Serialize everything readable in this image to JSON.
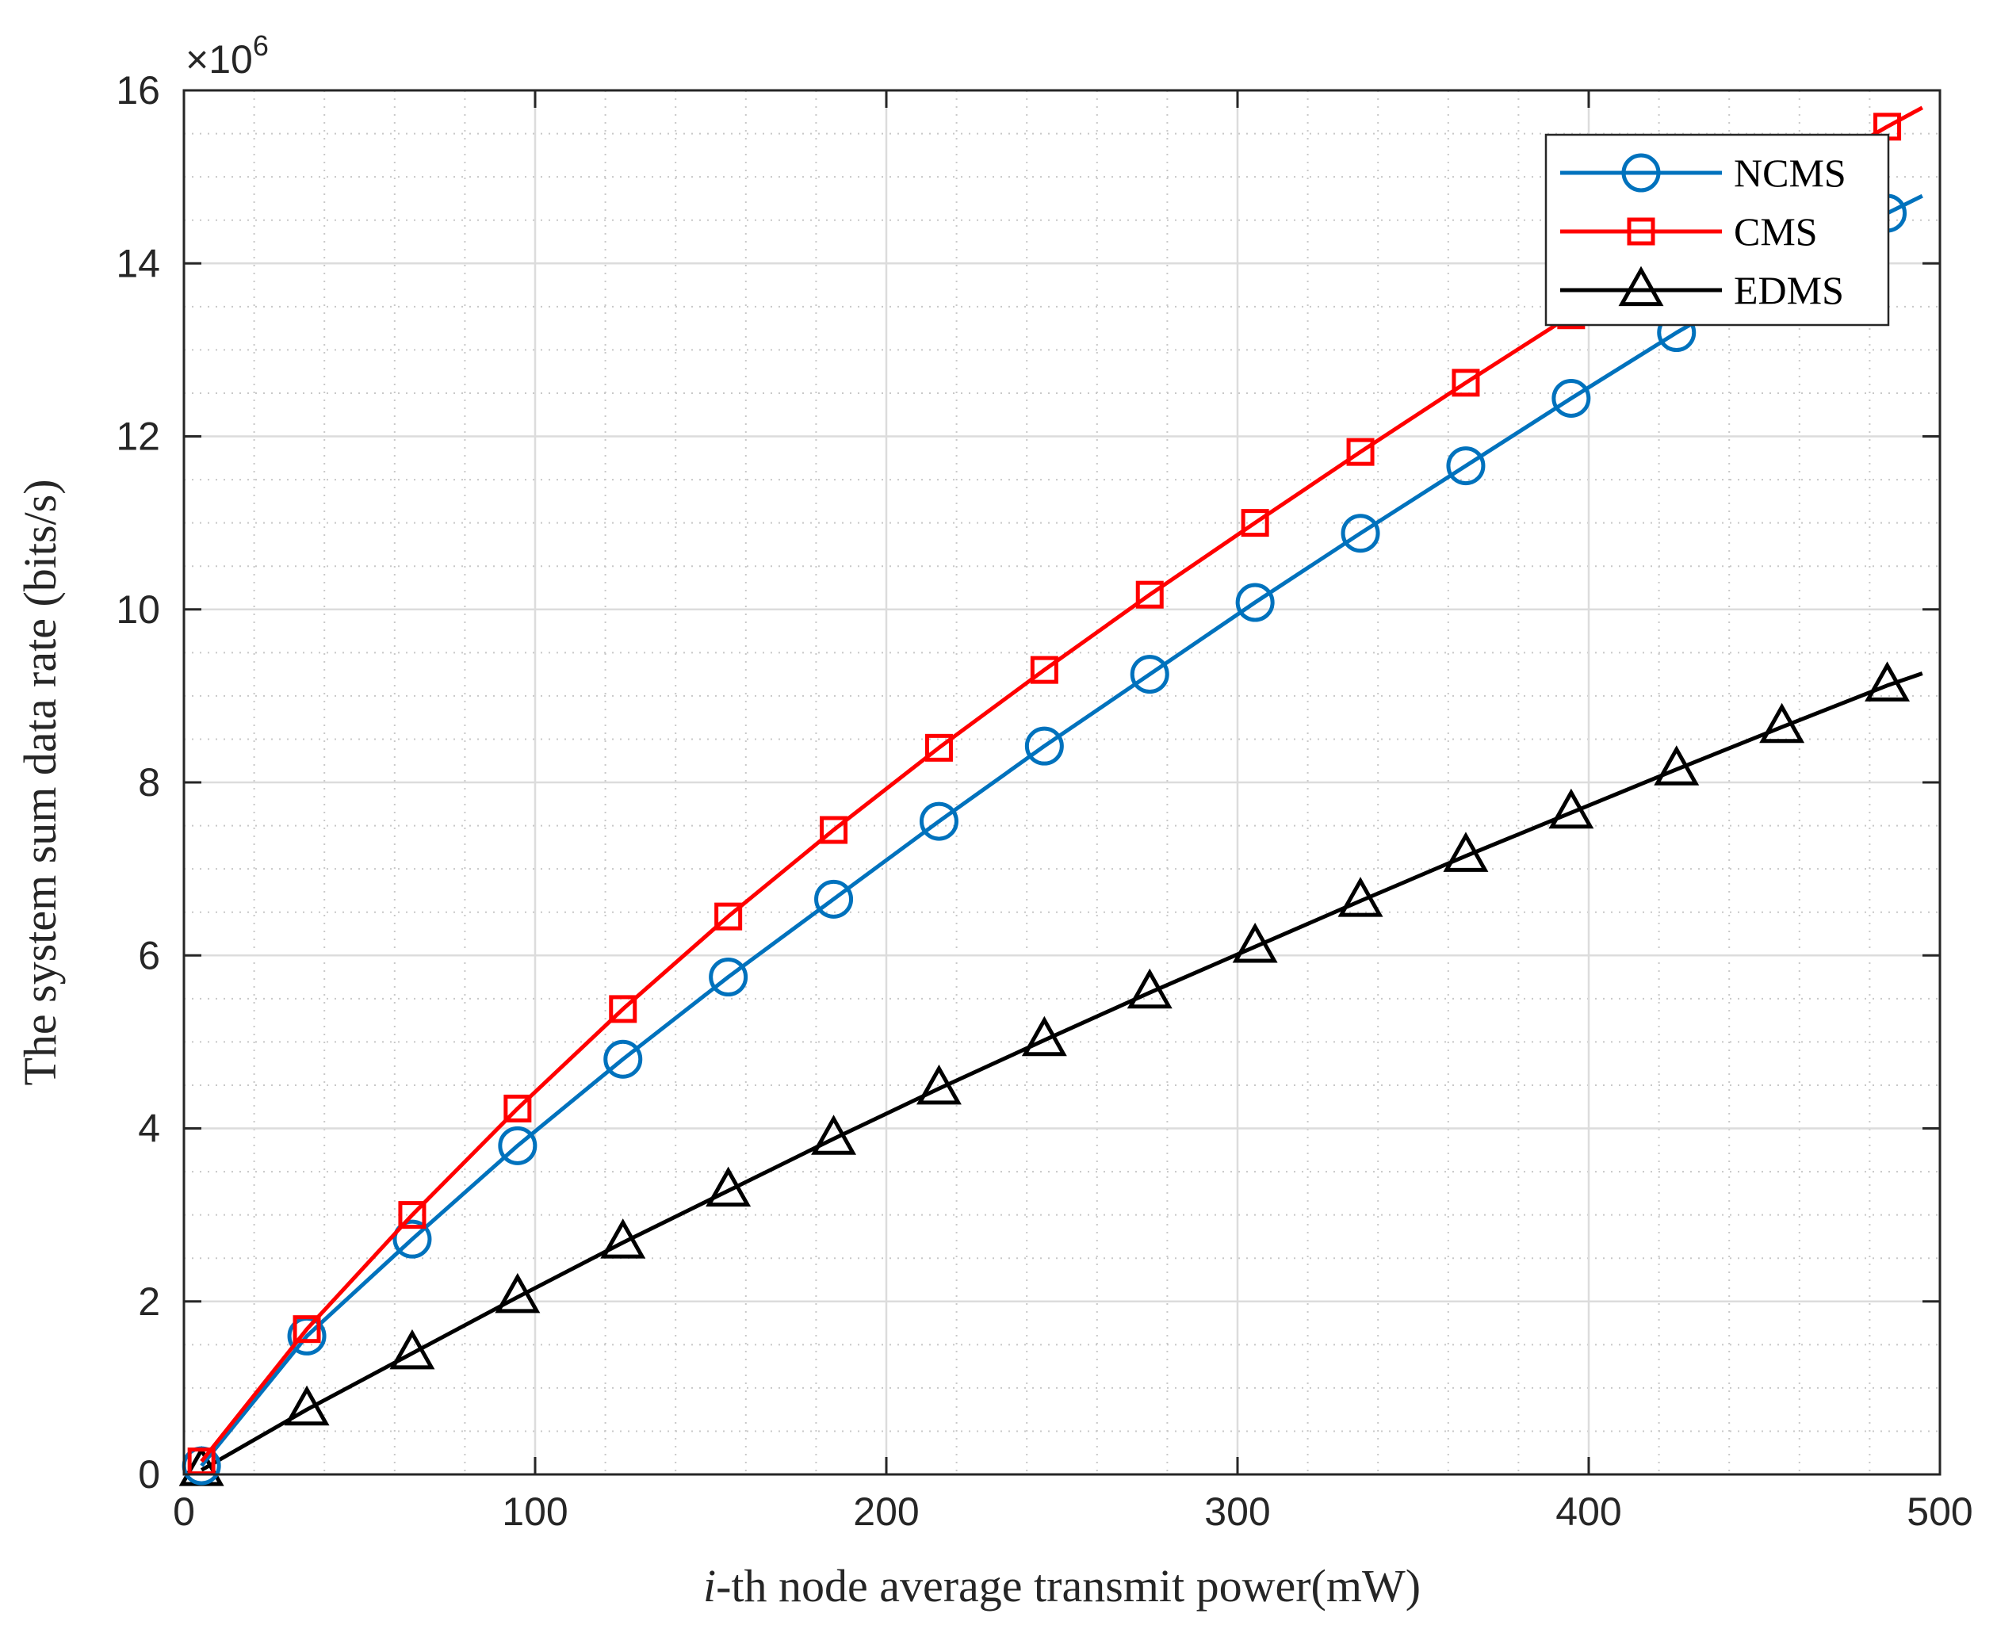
{
  "chart_data": {
    "type": "line",
    "title": "",
    "xlabel_italic": "i",
    "xlabel": "-th node average transmit power(mW)",
    "ylabel": "The system sum data rate (bits/s)",
    "y_exponent_label": "×10",
    "y_exponent": "6",
    "xlim": [
      0,
      500
    ],
    "ylim": [
      0,
      16
    ],
    "xticks": [
      0,
      100,
      200,
      300,
      400,
      500
    ],
    "yticks": [
      0,
      2,
      4,
      6,
      8,
      10,
      12,
      14,
      16
    ],
    "xtick_labels": [
      "0",
      "100",
      "200",
      "300",
      "400",
      "500"
    ],
    "ytick_labels": [
      "0",
      "2",
      "4",
      "6",
      "8",
      "10",
      "12",
      "14",
      "16"
    ],
    "grid": true,
    "minor_grid": true,
    "legend_position": "top-right",
    "series": [
      {
        "name": "NCMS",
        "color": "#0072BD",
        "marker": "circle",
        "x": [
          5,
          35,
          65,
          95,
          125,
          155,
          185,
          215,
          245,
          275,
          305,
          335,
          365,
          395,
          425,
          455,
          485,
          495
        ],
        "y": [
          0.1,
          1.6,
          2.72,
          3.8,
          4.8,
          5.75,
          6.65,
          7.55,
          8.42,
          9.25,
          10.08,
          10.88,
          11.66,
          12.44,
          13.2,
          13.9,
          14.58,
          14.78
        ],
        "marker_count": 17
      },
      {
        "name": "CMS",
        "color": "#FF0000",
        "marker": "square",
        "x": [
          5,
          35,
          65,
          95,
          125,
          155,
          185,
          215,
          245,
          275,
          305,
          335,
          365,
          395,
          425,
          455,
          485,
          495
        ],
        "y": [
          0.15,
          1.68,
          3.0,
          4.23,
          5.38,
          6.45,
          7.45,
          8.4,
          9.3,
          10.17,
          11.0,
          11.82,
          12.62,
          13.4,
          14.16,
          14.88,
          15.58,
          15.8
        ],
        "marker_count": 17
      },
      {
        "name": "EDMS",
        "color": "#000000",
        "marker": "triangle",
        "x": [
          5,
          35,
          65,
          95,
          125,
          155,
          185,
          215,
          245,
          275,
          305,
          335,
          365,
          395,
          425,
          455,
          485,
          495
        ],
        "y": [
          0.05,
          0.75,
          1.4,
          2.05,
          2.68,
          3.28,
          3.88,
          4.46,
          5.02,
          5.57,
          6.1,
          6.63,
          7.15,
          7.65,
          8.15,
          8.64,
          9.12,
          9.26
        ],
        "marker_count": 17
      }
    ]
  }
}
